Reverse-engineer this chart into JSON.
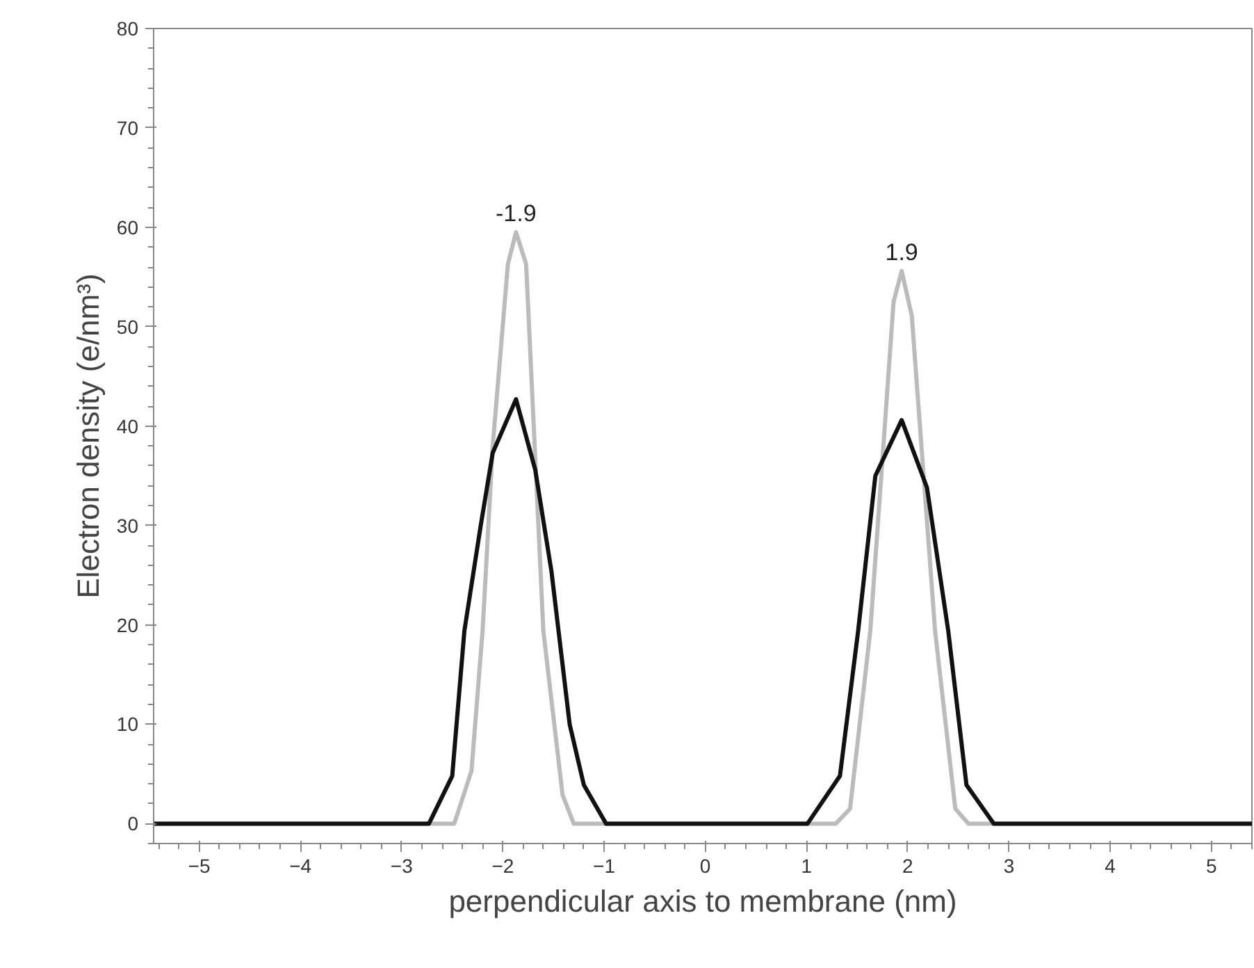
{
  "chart_data": {
    "type": "line",
    "xlabel": "perpendicular axis to membrane (nm)",
    "ylabel": "Electron density (e/nm³)",
    "xlim": [
      -5.45,
      5.4
    ],
    "ylim": [
      -2,
      80
    ],
    "xticks": [
      -5,
      -4,
      -3,
      -2,
      -1,
      0,
      1,
      2,
      3,
      4,
      5
    ],
    "yticks": [
      0,
      10,
      20,
      30,
      40,
      50,
      60,
      70,
      80
    ],
    "grid": false,
    "marker": "none",
    "line_style": "solid",
    "series": [
      {
        "color": "#bbbbbb",
        "x": [
          -5.45,
          -2.48,
          -2.31,
          -2.2,
          -2.1,
          -1.95,
          -1.87,
          -1.77,
          -1.6,
          -1.41,
          -1.3,
          1.29,
          1.43,
          1.63,
          1.86,
          1.94,
          2.04,
          2.27,
          2.47,
          2.6,
          5.4
        ],
        "values": [
          0,
          0,
          5.3,
          19.4,
          38,
          56.3,
          59.5,
          56.3,
          19.4,
          2.9,
          0,
          0,
          1.5,
          19.4,
          52.5,
          55.6,
          51.1,
          19.4,
          1.5,
          0,
          0
        ]
      },
      {
        "color": "#111111",
        "x": [
          -5.45,
          -2.73,
          -2.5,
          -2.38,
          -2.22,
          -2.1,
          -1.87,
          -1.68,
          -1.52,
          -1.34,
          -1.2,
          -0.98,
          1.01,
          1.33,
          1.51,
          1.68,
          1.94,
          2.19,
          2.4,
          2.58,
          2.85,
          5.4
        ],
        "values": [
          0,
          0,
          4.8,
          19.4,
          29.9,
          37.3,
          42.7,
          35.6,
          25.4,
          10,
          3.9,
          0,
          0,
          4.8,
          19.4,
          35,
          40.6,
          33.8,
          19.4,
          3.9,
          0,
          0
        ]
      }
    ],
    "annotations": [
      {
        "text": "-1.9",
        "x": -1.87,
        "y": 59.5
      },
      {
        "text": "1.9",
        "x": 1.94,
        "y": 55.6
      }
    ]
  }
}
